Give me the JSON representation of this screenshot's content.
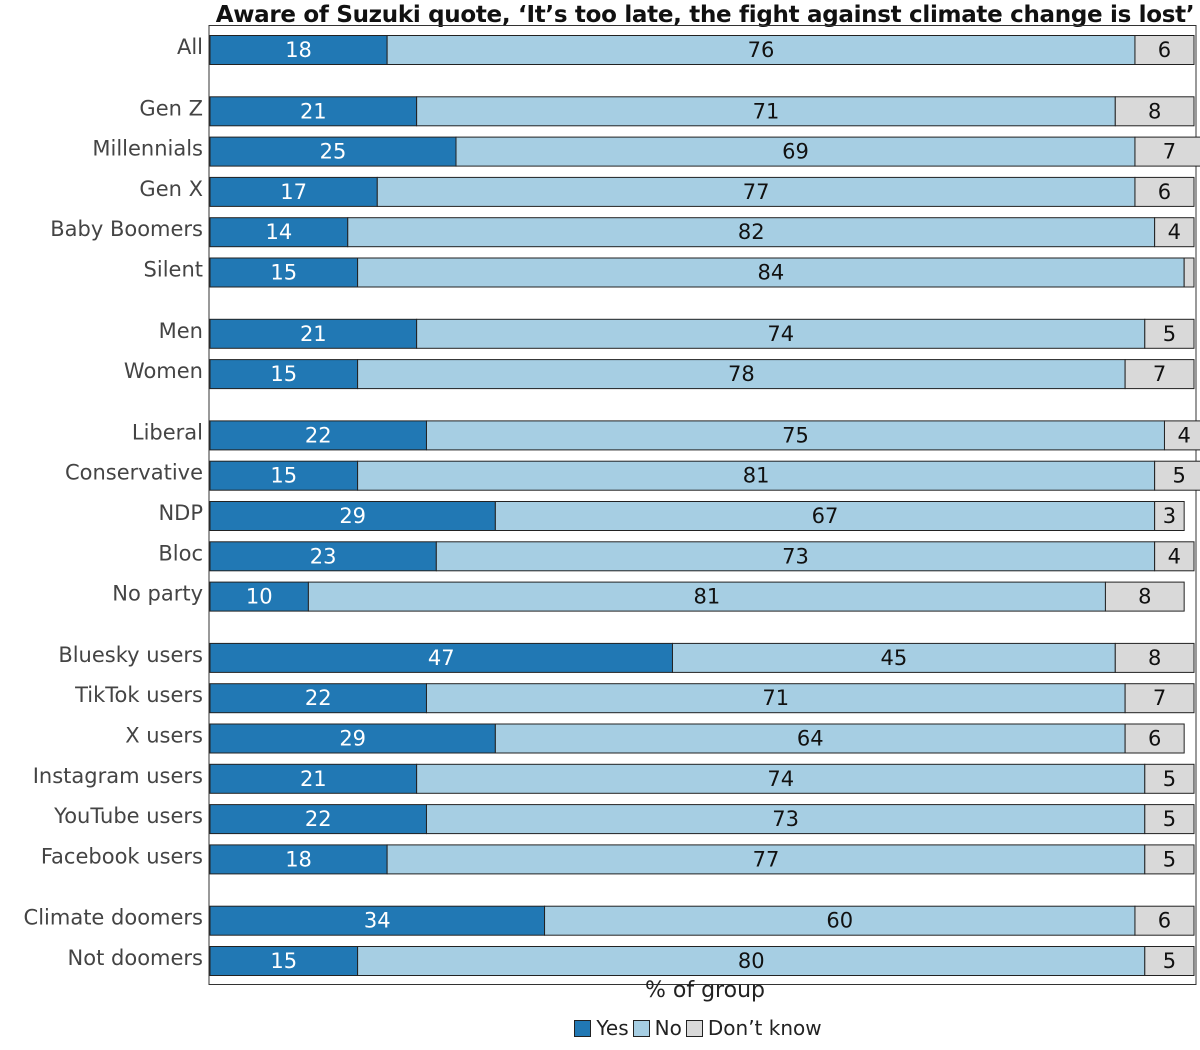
{
  "chart_data": {
    "type": "bar",
    "orientation": "horizontal",
    "stacked": true,
    "title": "Aware of Suzuki quote, ‘It’s too late, the fight against climate change is lost’",
    "xlabel": "% of group",
    "ylabel": "",
    "xlim": [
      0,
      100
    ],
    "grid": false,
    "legend_position": "bottom",
    "categories": [
      "All",
      "Gen Z",
      "Millennials",
      "Gen X",
      "Baby Boomers",
      "Silent",
      "Men",
      "Women",
      "Liberal",
      "Conservative",
      "NDP",
      "Bloc",
      "No party",
      "Bluesky users",
      "TikTok users",
      "X users",
      "Instagram users",
      "YouTube users",
      "Facebook users",
      "Climate doomers",
      "Not doomers"
    ],
    "groups": [
      [
        "All"
      ],
      [
        "Gen Z",
        "Millennials",
        "Gen X",
        "Baby Boomers",
        "Silent"
      ],
      [
        "Men",
        "Women"
      ],
      [
        "Liberal",
        "Conservative",
        "NDP",
        "Bloc",
        "No party"
      ],
      [
        "Bluesky users",
        "TikTok users",
        "X users",
        "Instagram users",
        "YouTube users",
        "Facebook users"
      ],
      [
        "Climate doomers",
        "Not doomers"
      ]
    ],
    "series": [
      {
        "name": "Yes",
        "color": "#2178b4",
        "label_color": "#ffffff",
        "values": [
          18,
          21,
          25,
          17,
          14,
          15,
          21,
          15,
          22,
          15,
          29,
          23,
          10,
          47,
          22,
          29,
          21,
          22,
          18,
          34,
          15
        ]
      },
      {
        "name": "No",
        "color": "#a6cee3",
        "label_color": "#111111",
        "values": [
          76,
          71,
          69,
          77,
          82,
          84,
          74,
          78,
          75,
          81,
          67,
          73,
          81,
          45,
          71,
          64,
          74,
          73,
          77,
          60,
          80
        ]
      },
      {
        "name": "Don’t know",
        "color": "#d9d9d9",
        "label_color": "#111111",
        "values": [
          6,
          8,
          7,
          6,
          4,
          1,
          5,
          7,
          4,
          5,
          3,
          4,
          8,
          8,
          7,
          6,
          5,
          5,
          5,
          6,
          5
        ],
        "labels": [
          "6",
          "8",
          "7",
          "6",
          "4",
          "",
          "5",
          "7",
          "4",
          "5",
          "3",
          "4",
          "8",
          "8",
          "7",
          "6",
          "5",
          "5",
          "5",
          "6",
          "5"
        ]
      }
    ]
  }
}
